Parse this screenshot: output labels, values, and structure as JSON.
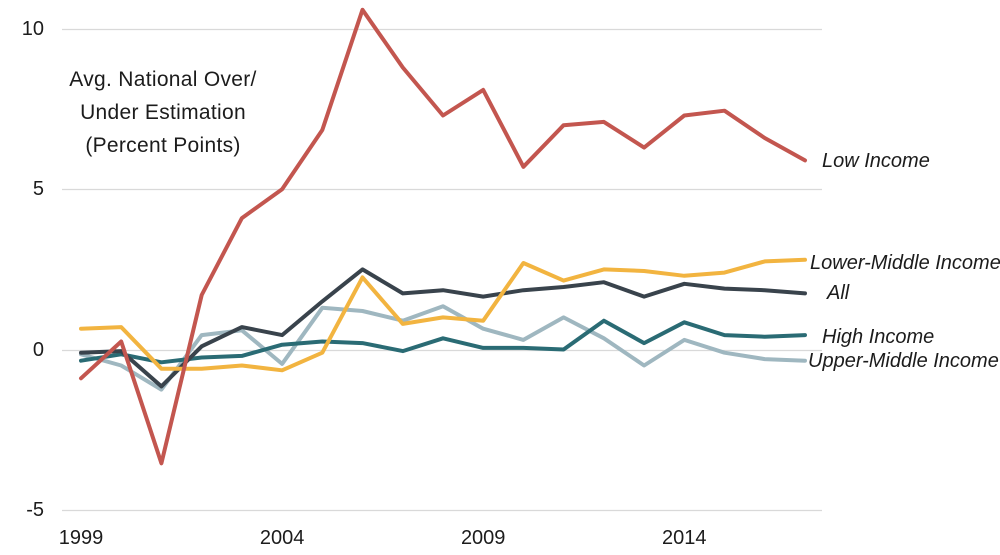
{
  "chart_data": {
    "type": "line",
    "title": "Avg. National Over/Under Estimation (Percent Points)",
    "title_lines": [
      "Avg. National Over/",
      "Under Estimation",
      "(Percent Points)"
    ],
    "xlabel": "",
    "ylabel": "Avg. National Over/Under Estimation (Percent Points)",
    "x": [
      1999,
      2000,
      2001,
      2002,
      2003,
      2004,
      2005,
      2006,
      2007,
      2008,
      2009,
      2010,
      2011,
      2012,
      2013,
      2014,
      2015,
      2016,
      2017
    ],
    "x_tick_labels": [
      "1999",
      "2004",
      "2009",
      "2014"
    ],
    "y_tick_labels": [
      "10",
      "5",
      "0",
      "-5"
    ],
    "xlim": [
      1999,
      2017
    ],
    "ylim": [
      -5,
      10
    ],
    "grid": "horizontal-only",
    "legend_position": "right-end-of-line-labels",
    "series": [
      {
        "name": "upper-middle-income",
        "label": "Upper-Middle Income",
        "color": "#9FB7C0",
        "values": [
          -0.15,
          -0.5,
          -1.25,
          0.45,
          0.6,
          -0.45,
          1.3,
          1.2,
          0.9,
          1.35,
          0.65,
          0.3,
          1.0,
          0.35,
          -0.5,
          0.3,
          -0.1,
          -0.3,
          -0.35
        ]
      },
      {
        "name": "high-income",
        "label": "High Income",
        "color": "#2A6B74",
        "values": [
          -0.35,
          -0.15,
          -0.4,
          -0.25,
          -0.2,
          0.15,
          0.25,
          0.2,
          -0.05,
          0.35,
          0.05,
          0.05,
          0.0,
          0.9,
          0.2,
          0.85,
          0.45,
          0.4,
          0.45
        ]
      },
      {
        "name": "all",
        "label": "All",
        "color": "#39434C",
        "values": [
          -0.1,
          -0.05,
          -1.15,
          0.1,
          0.7,
          0.45,
          1.5,
          2.5,
          1.75,
          1.85,
          1.65,
          1.85,
          1.95,
          2.1,
          1.65,
          2.05,
          1.9,
          1.85,
          1.75
        ]
      },
      {
        "name": "lower-middle-income",
        "label": "Lower-Middle Income",
        "color": "#F2B440",
        "values": [
          0.65,
          0.7,
          -0.6,
          -0.6,
          -0.5,
          -0.65,
          -0.1,
          2.25,
          0.8,
          1.0,
          0.9,
          2.7,
          2.15,
          2.5,
          2.45,
          2.3,
          2.4,
          2.75,
          2.8
        ]
      },
      {
        "name": "low-income",
        "label": "Low Income",
        "color": "#C3564F",
        "values": [
          -0.9,
          0.25,
          -3.55,
          1.7,
          4.1,
          5.0,
          6.85,
          10.6,
          8.8,
          7.3,
          8.1,
          5.7,
          7.0,
          7.1,
          6.3,
          7.3,
          7.45,
          6.6,
          5.9
        ]
      }
    ],
    "colors": {
      "background": "#FFFFFF",
      "gridline": "#D9D9D9",
      "text": "#1C1C1C"
    }
  }
}
